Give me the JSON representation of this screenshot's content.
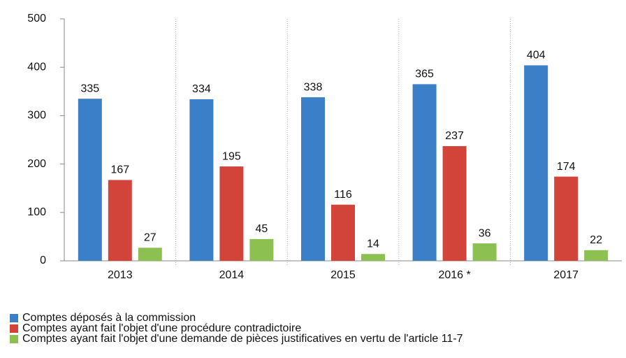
{
  "chart_data": {
    "type": "bar",
    "categories": [
      "2013",
      "2014",
      "2015",
      "2016 *",
      "2017"
    ],
    "series": [
      {
        "name": "Comptes déposés à la commission",
        "color": "#3b7fc8",
        "values": [
          335,
          334,
          338,
          365,
          404
        ]
      },
      {
        "name": "Comptes ayant fait l'objet d'une procédure contradictoire",
        "color": "#d2433a",
        "values": [
          167,
          195,
          116,
          237,
          174
        ]
      },
      {
        "name": "Comptes ayant fait l'objet d'une demande de pièces justificatives en vertu de l'article 11-7",
        "color": "#8cc152",
        "values": [
          27,
          45,
          14,
          36,
          22
        ]
      }
    ],
    "ylim": [
      0,
      500
    ],
    "yticks": [
      0,
      100,
      200,
      300,
      400,
      500
    ],
    "legend": "bottom"
  }
}
